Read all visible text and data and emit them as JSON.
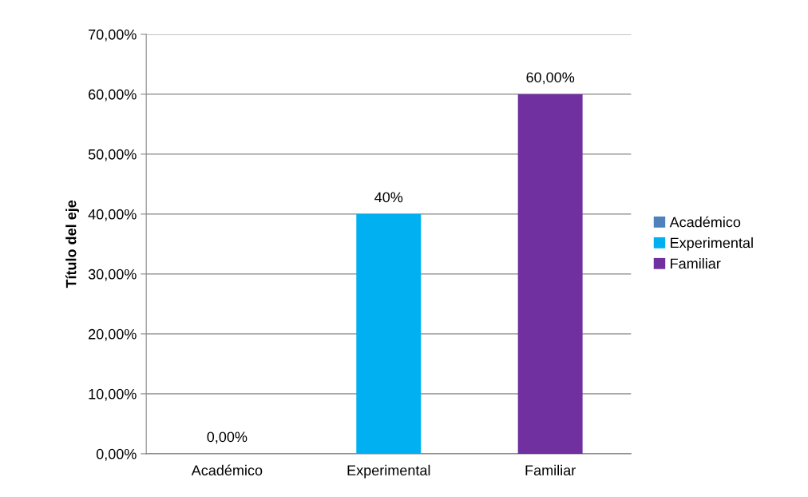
{
  "chart_data": {
    "type": "bar",
    "ylabel": "Título del eje",
    "categories": [
      "Académico",
      "Experimental",
      "Familiar"
    ],
    "series": [
      {
        "name": "Académico",
        "color": "#4f81bd",
        "values": [
          0,
          null,
          null
        ],
        "value_labels": [
          "0,00%",
          null,
          null
        ]
      },
      {
        "name": "Experimental",
        "color": "#00b0f0",
        "values": [
          null,
          40,
          null
        ],
        "value_labels": [
          null,
          "40%",
          null
        ]
      },
      {
        "name": "Familiar",
        "color": "#7030a0",
        "values": [
          null,
          null,
          60
        ],
        "value_labels": [
          null,
          null,
          "60,00%"
        ]
      }
    ],
    "ylim": [
      0,
      70
    ],
    "yticks": [
      {
        "value": 0,
        "label": "0,00%"
      },
      {
        "value": 10,
        "label": "10,00%"
      },
      {
        "value": 20,
        "label": "20,00%"
      },
      {
        "value": 30,
        "label": "30,00%"
      },
      {
        "value": 40,
        "label": "40,00%"
      },
      {
        "value": 50,
        "label": "50,00%"
      },
      {
        "value": 60,
        "label": "60,00%"
      },
      {
        "value": 70,
        "label": "70,00%"
      }
    ],
    "grid": "y",
    "legend": "right"
  }
}
